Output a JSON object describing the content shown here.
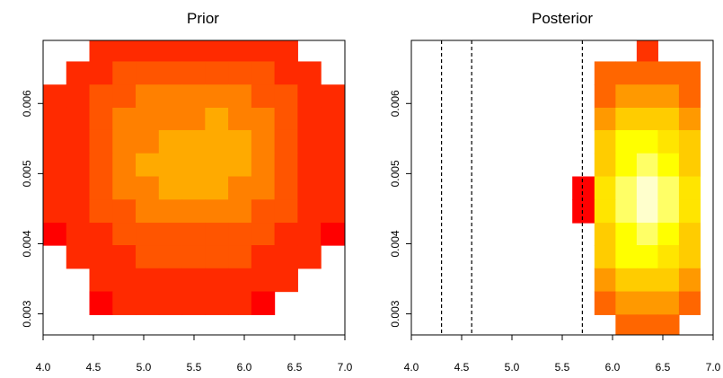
{
  "chart_data": [
    {
      "type": "heatmap",
      "title": "Prior",
      "xlabel": "",
      "ylabel": "",
      "xlim": [
        4.0,
        7.0
      ],
      "ylim": [
        0.0027,
        0.0069
      ],
      "x_ticks": [
        4.0,
        4.5,
        5.0,
        5.5,
        6.0,
        6.5,
        7.0
      ],
      "x_tick_labels": [
        "4.0",
        "4.5",
        "5.0",
        "5.5",
        "6.0",
        "6.5",
        "7.0"
      ],
      "y_ticks": [
        0.003,
        0.004,
        0.005,
        0.006
      ],
      "y_tick_labels": [
        "0.003",
        "0.004",
        "0.005",
        "0.006"
      ],
      "grid": false,
      "x_edges": [
        4.0,
        4.23,
        4.46,
        4.69,
        4.92,
        5.15,
        5.38,
        5.61,
        5.84,
        6.07,
        6.3,
        6.53,
        6.76,
        7.0
      ],
      "y_edges": [
        0.00267,
        0.00299,
        0.00332,
        0.00365,
        0.00398,
        0.0043,
        0.00463,
        0.00496,
        0.00529,
        0.00562,
        0.00594,
        0.00627,
        0.0066,
        0.00692
      ],
      "palette": [
        "#FF0000",
        "#FF2A00",
        "#FF5500",
        "#FF8000",
        "#FFAA00"
      ],
      "values_note": "levels indexed into palette; null = empty",
      "values": [
        [
          null,
          null,
          1,
          1,
          1,
          1,
          1,
          1,
          1,
          1,
          1,
          null,
          null
        ],
        [
          null,
          1,
          1,
          2,
          2,
          2,
          2,
          2,
          2,
          2,
          1,
          1,
          null
        ],
        [
          1,
          1,
          2,
          2,
          3,
          3,
          3,
          3,
          3,
          2,
          2,
          1,
          1
        ],
        [
          1,
          1,
          2,
          3,
          3,
          3,
          3,
          4,
          3,
          3,
          2,
          1,
          1
        ],
        [
          1,
          1,
          2,
          3,
          3,
          4,
          4,
          4,
          4,
          3,
          2,
          1,
          1
        ],
        [
          1,
          1,
          2,
          3,
          4,
          4,
          4,
          4,
          4,
          3,
          2,
          1,
          1
        ],
        [
          1,
          1,
          2,
          3,
          3,
          4,
          4,
          4,
          3,
          3,
          2,
          1,
          1
        ],
        [
          1,
          1,
          2,
          2,
          3,
          3,
          3,
          3,
          3,
          2,
          2,
          1,
          1
        ],
        [
          0,
          1,
          1,
          2,
          2,
          2,
          2,
          2,
          2,
          2,
          1,
          1,
          0
        ],
        [
          null,
          1,
          1,
          1,
          2,
          2,
          2,
          2,
          2,
          1,
          1,
          1,
          null
        ],
        [
          null,
          null,
          1,
          1,
          1,
          1,
          1,
          1,
          1,
          1,
          1,
          null,
          null
        ],
        [
          null,
          null,
          0,
          1,
          1,
          1,
          1,
          1,
          1,
          0,
          null,
          null,
          null
        ],
        [
          null,
          null,
          null,
          null,
          null,
          null,
          null,
          null,
          null,
          null,
          null,
          null,
          null
        ]
      ]
    },
    {
      "type": "heatmap",
      "title": "Posterior",
      "xlabel": "",
      "ylabel": "",
      "xlim": [
        4.0,
        7.0
      ],
      "ylim": [
        0.0027,
        0.0069
      ],
      "x_ticks": [
        4.0,
        4.5,
        5.0,
        5.5,
        6.0,
        6.5,
        7.0
      ],
      "x_tick_labels": [
        "4.0",
        "4.5",
        "5.0",
        "5.5",
        "6.0",
        "6.5",
        "7.0"
      ],
      "y_ticks": [
        0.003,
        0.004,
        0.005,
        0.006
      ],
      "y_tick_labels": [
        "0.003",
        "0.004",
        "0.005",
        "0.006"
      ],
      "grid": false,
      "vertical_lines": [
        4.3,
        4.6,
        5.7
      ],
      "x_edges": [
        5.6,
        5.82,
        6.03,
        6.24,
        6.45,
        6.66,
        6.87
      ],
      "y_edges": [
        0.00267,
        0.00299,
        0.00332,
        0.00365,
        0.00398,
        0.0043,
        0.00463,
        0.00496,
        0.00529,
        0.00562,
        0.00594,
        0.00627,
        0.0066,
        0.00692
      ],
      "palette": [
        "#FF0000",
        "#FF3300",
        "#FF6600",
        "#FF9900",
        "#FFCC00",
        "#FFE500",
        "#FFFF00",
        "#FFFF66",
        "#FFFFCC"
      ],
      "values_note": "levels indexed into palette; null = empty",
      "values": [
        [
          null,
          null,
          null,
          1,
          null,
          null
        ],
        [
          null,
          2,
          2,
          2,
          2,
          2
        ],
        [
          null,
          2,
          3,
          3,
          3,
          2
        ],
        [
          null,
          3,
          4,
          4,
          4,
          3
        ],
        [
          null,
          4,
          6,
          6,
          5,
          4
        ],
        [
          null,
          4,
          6,
          7,
          6,
          4
        ],
        [
          0,
          5,
          7,
          8,
          7,
          5
        ],
        [
          0,
          5,
          7,
          8,
          7,
          5
        ],
        [
          null,
          4,
          6,
          7,
          6,
          4
        ],
        [
          null,
          4,
          6,
          6,
          5,
          4
        ],
        [
          null,
          3,
          4,
          4,
          4,
          3
        ],
        [
          null,
          2,
          3,
          3,
          3,
          2
        ],
        [
          null,
          null,
          2,
          2,
          2,
          null
        ]
      ]
    }
  ]
}
